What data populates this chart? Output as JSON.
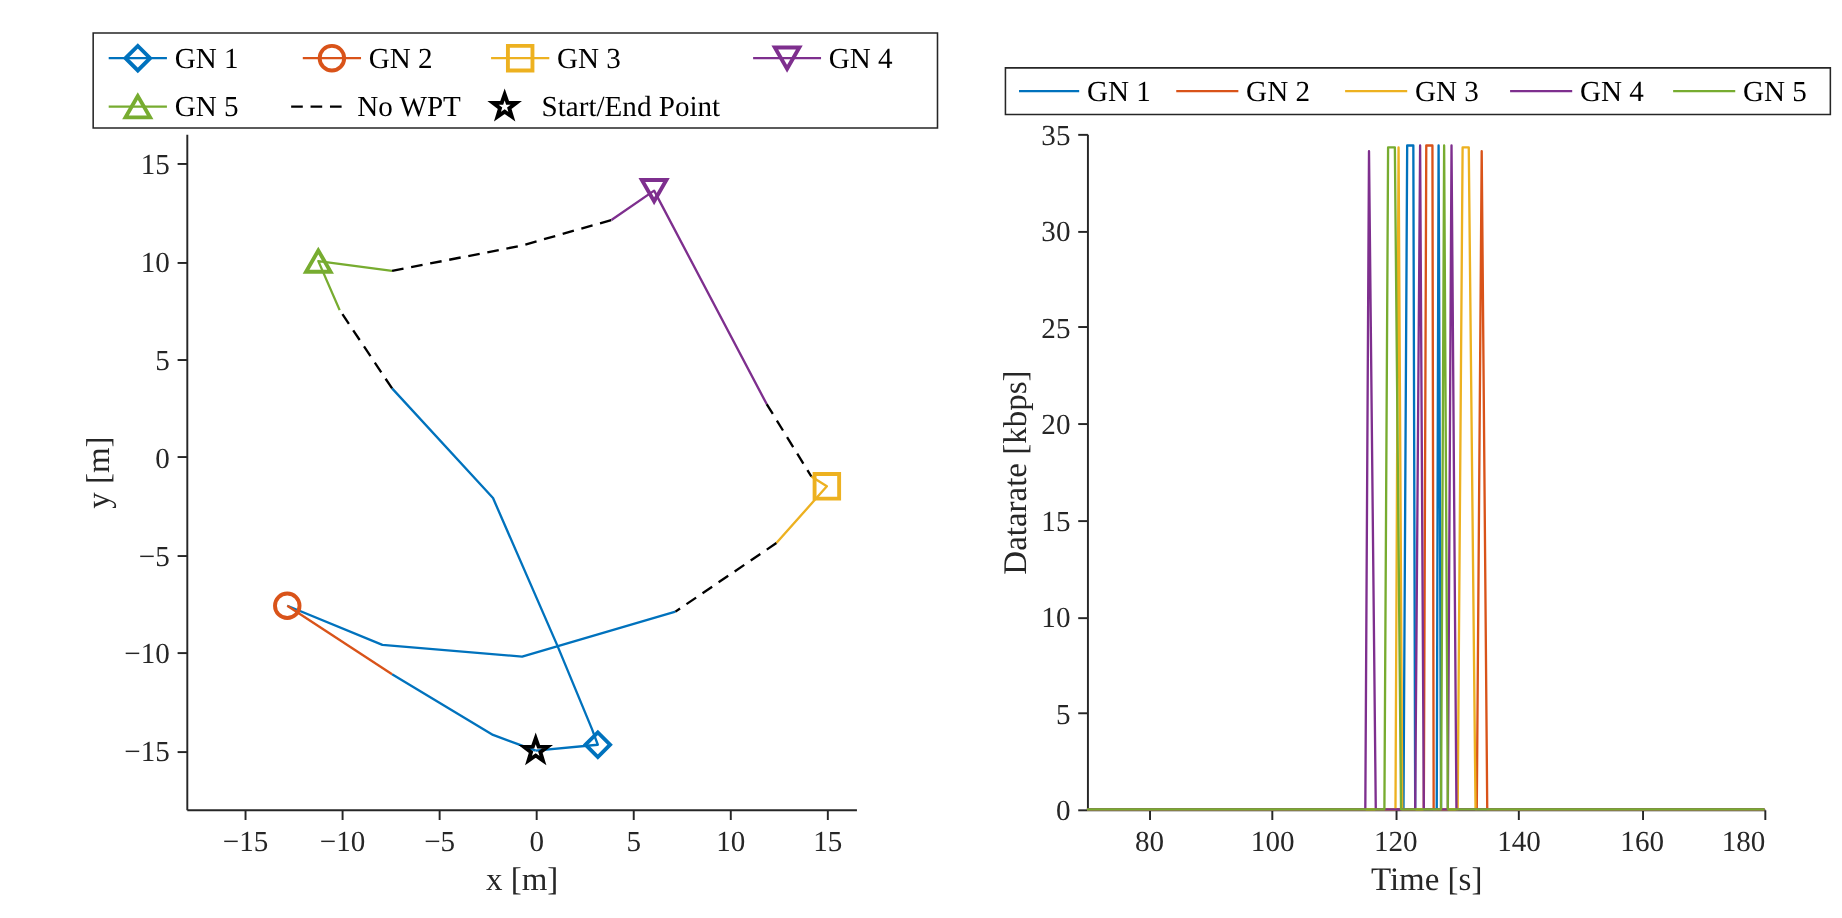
{
  "chart_data": [
    {
      "type": "line",
      "xlabel": "x [m]",
      "ylabel": "y [m]",
      "xlim": [
        -18,
        16.5
      ],
      "ylim": [
        -18,
        16.5
      ],
      "xticks": [
        -15,
        -10,
        -5,
        0,
        5,
        10,
        15
      ],
      "yticks": [
        -15,
        -10,
        -5,
        0,
        5,
        10,
        15
      ],
      "grid": false,
      "legend": "top",
      "series": [
        {
          "type": "line",
          "color": "#0072bd",
          "x": [
            0,
            3.2,
            2.9,
            1.1,
            -2.2,
            -7.4,
            null,
            7.2,
            -0.7,
            -7.9,
            -12.8,
            null,
            -7.4,
            -2.2,
            0
          ],
          "values": [
            -15,
            -14.7,
            -13.9,
            -9.6,
            -2.1,
            3.5,
            null,
            -7.9,
            -10.2,
            -9.6,
            -7.6,
            null,
            -11.1,
            -14.2,
            -15
          ]
        },
        {
          "type": "line",
          "color": "#d95319",
          "x": [
            -12.8,
            -7.4
          ],
          "values": [
            -7.6,
            -11.1
          ]
        },
        {
          "type": "line",
          "color": "#edb120",
          "x": [
            14.2,
            15,
            12.4
          ],
          "values": [
            -1,
            -1.5,
            -4.4
          ]
        },
        {
          "type": "line",
          "color": "#7e2f8e",
          "x": [
            3.9,
            6.1,
            11.9
          ],
          "values": [
            12.1,
            13.6,
            2.7
          ]
        },
        {
          "type": "line",
          "color": "#77ac30",
          "x": [
            -10.1,
            -11.2,
            -7.4
          ],
          "values": [
            7.5,
            10,
            9.5
          ]
        },
        {
          "type": "scatter",
          "name": "GN 1",
          "color": "#0072bd",
          "marker": "diamond",
          "x": [
            3.2
          ],
          "values": [
            -14.7
          ]
        },
        {
          "type": "scatter",
          "name": "GN 2",
          "color": "#d95319",
          "marker": "circle",
          "x": [
            -12.8
          ],
          "values": [
            -7.6
          ]
        },
        {
          "type": "scatter",
          "name": "GN 3",
          "color": "#edb120",
          "marker": "square",
          "x": [
            15
          ],
          "values": [
            -1.5
          ]
        },
        {
          "type": "scatter",
          "name": "GN 4",
          "color": "#7e2f8e",
          "marker": "triangle-down",
          "x": [
            6.1
          ],
          "values": [
            13.6
          ]
        },
        {
          "type": "scatter",
          "name": "GN 5",
          "color": "#77ac30",
          "marker": "triangle",
          "x": [
            -11.2
          ],
          "values": [
            10
          ]
        },
        {
          "type": "line",
          "name": "No WPT",
          "color": "#000000",
          "line_style": "dashed",
          "x": [
            -7.4,
            -10.1,
            null,
            -7.4,
            -0.7,
            3.9,
            null,
            11.9,
            14.2,
            null,
            12.4,
            7.2
          ],
          "values": [
            3.5,
            7.5,
            null,
            9.5,
            10.8,
            12.1,
            null,
            2.7,
            -1,
            null,
            -4.4,
            -7.9
          ]
        },
        {
          "type": "scatter",
          "name": "Start/End Point",
          "color": "#000000",
          "marker": "star",
          "x": [
            0
          ],
          "values": [
            -15
          ]
        }
      ]
    },
    {
      "type": "line",
      "xlabel": "Time [s]",
      "ylabel": "Datarate [kbps]",
      "xlim": [
        70,
        180
      ],
      "ylim": [
        0,
        35
      ],
      "xticks": [
        80,
        100,
        120,
        140,
        160,
        180
      ],
      "yticks": [
        0,
        5,
        10,
        15,
        20,
        25,
        30,
        35
      ],
      "grid": false,
      "legend": "top",
      "series": [
        {
          "name": "GN 1",
          "color": "#0072bd",
          "x": [
            70,
            121.4,
            122,
            123,
            123.3,
            126.8,
            127.1,
            127.5,
            180
          ],
          "values": [
            0,
            0,
            34.4,
            34.4,
            0,
            0,
            34.4,
            0,
            0
          ]
        },
        {
          "name": "GN 2",
          "color": "#d95319",
          "x": [
            70,
            124.7,
            125.1,
            126.1,
            126.3,
            133.3,
            134.1,
            135,
            180
          ],
          "values": [
            0,
            0,
            34.4,
            34.4,
            0,
            0,
            34.1,
            0,
            0
          ]
        },
        {
          "name": "GN 3",
          "color": "#edb120",
          "x": [
            70,
            120.1,
            120.6,
            121.2,
            130.2,
            131,
            132,
            133.1,
            180
          ],
          "values": [
            0,
            0,
            34.3,
            0,
            0,
            34.3,
            34.3,
            0,
            0
          ]
        },
        {
          "name": "GN 4",
          "color": "#7e2f8e",
          "x": [
            70,
            115.2,
            115.8,
            116.9,
            123.3,
            124.1,
            124.7,
            128.6,
            129.2,
            130,
            180
          ],
          "values": [
            0,
            0,
            34.1,
            0,
            0,
            34.4,
            0,
            0,
            34.4,
            0,
            0
          ]
        },
        {
          "name": "GN 5",
          "color": "#77ac30",
          "x": [
            70,
            118.3,
            118.9,
            120,
            121,
            127.5,
            128,
            128.6,
            180
          ],
          "values": [
            0,
            0,
            34.3,
            34.3,
            0,
            0,
            34.4,
            0,
            0
          ]
        }
      ]
    }
  ]
}
